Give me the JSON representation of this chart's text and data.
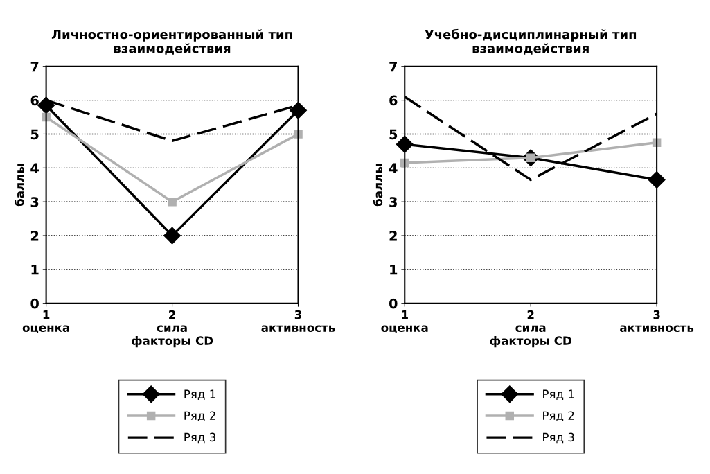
{
  "chart_data": [
    {
      "type": "line",
      "title": "Личностно-ориентированный тип\nвзаимодействия",
      "xlabel": "факторы CD",
      "ylabel": "баллы",
      "categories": [
        "1\nоценка",
        "2\nсила",
        "3\nактивность"
      ],
      "ylim": [
        0,
        7
      ],
      "yticks": [
        0,
        1,
        2,
        3,
        4,
        5,
        6,
        7
      ],
      "grid": "y",
      "legend": "bottom",
      "series": [
        {
          "name": "Ряд 1",
          "color": "#000000",
          "marker": "diamond",
          "line_style": "solid",
          "values": [
            5.85,
            2.0,
            5.7
          ]
        },
        {
          "name": "Ряд 2",
          "color": "#b0b0b0",
          "marker": "square",
          "line_style": "solid",
          "values": [
            5.5,
            3.0,
            5.0
          ]
        },
        {
          "name": "Ряд 3",
          "color": "#000000",
          "marker": "none",
          "line_style": "dashed",
          "values": [
            6.0,
            4.8,
            5.85
          ]
        }
      ]
    },
    {
      "type": "line",
      "title": "Учебно-дисциплинарный тип\nвзаимодействия",
      "xlabel": "факторы CD",
      "ylabel": "баллы",
      "categories": [
        "1\nоценка",
        "2\nсила",
        "3\nактивность"
      ],
      "ylim": [
        0,
        7
      ],
      "yticks": [
        0,
        1,
        2,
        3,
        4,
        5,
        6,
        7
      ],
      "grid": "y",
      "legend": "bottom",
      "series": [
        {
          "name": "Ряд 1",
          "color": "#000000",
          "marker": "diamond",
          "line_style": "solid",
          "values": [
            4.7,
            4.3,
            3.65
          ]
        },
        {
          "name": "Ряд 2",
          "color": "#b0b0b0",
          "marker": "square",
          "line_style": "solid",
          "values": [
            4.15,
            4.3,
            4.75
          ]
        },
        {
          "name": "Ряд 3",
          "color": "#000000",
          "marker": "none",
          "line_style": "dashed",
          "values": [
            6.1,
            3.65,
            5.6
          ]
        }
      ]
    }
  ]
}
